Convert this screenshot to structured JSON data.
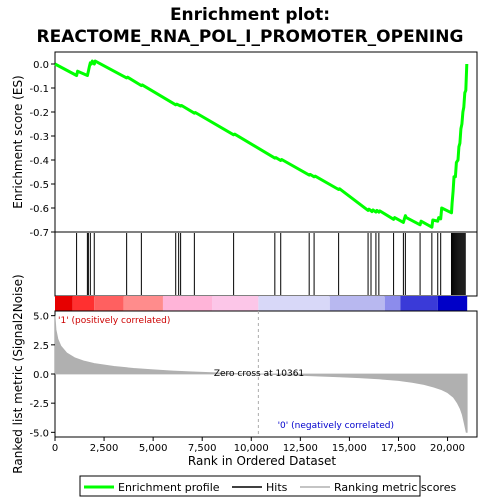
{
  "chart_data": {
    "type": "line",
    "title": "Enrichment plot:",
    "subtitle": "REACTOME_RNA_POL_I_PROMOTER_OPENING",
    "es_panel": {
      "ylabel": "Enrichment score (ES)",
      "ylim": [
        -0.7,
        0.05
      ],
      "yticks": [
        0.0,
        -0.1,
        -0.2,
        -0.3,
        -0.4,
        -0.5,
        -0.6,
        -0.7
      ],
      "ytick_labels": [
        "0.0",
        "-0.1",
        "-0.2",
        "-0.3",
        "-0.4",
        "-0.5",
        "-0.6",
        "-0.7"
      ],
      "line_color": "#00ff00",
      "series": [
        {
          "x": [
            0,
            1100,
            1150,
            1650,
            1700,
            1750,
            1800,
            1850,
            1900,
            2000,
            2050,
            3650,
            3700,
            4400,
            4450,
            6150,
            6200,
            6400,
            6450,
            7100,
            7150,
            9100,
            9150,
            11200,
            11250,
            11500,
            11550,
            12950,
            13000,
            13200,
            13250,
            14450,
            14500,
            15950,
            16000,
            16150,
            16200,
            16350,
            16400,
            16500,
            16550,
            17250,
            17300,
            17750,
            17800,
            17850,
            17900,
            18600,
            18650,
            19200,
            19250,
            19500,
            19550,
            19650,
            19700,
            20200,
            20230,
            20280,
            20330,
            20400,
            20450,
            20530,
            20580,
            20630,
            20680,
            20730,
            20780,
            20830,
            20880,
            20930,
            20980
          ],
          "y": [
            0.0,
            -0.048,
            -0.03,
            -0.048,
            -0.03,
            -0.012,
            0.005,
            0.0,
            0.012,
            0.0,
            0.012,
            -0.058,
            -0.055,
            -0.09,
            -0.087,
            -0.17,
            -0.167,
            -0.175,
            -0.173,
            -0.205,
            -0.202,
            -0.295,
            -0.292,
            -0.392,
            -0.39,
            -0.402,
            -0.398,
            -0.463,
            -0.46,
            -0.47,
            -0.467,
            -0.523,
            -0.52,
            -0.61,
            -0.605,
            -0.615,
            -0.608,
            -0.617,
            -0.61,
            -0.617,
            -0.612,
            -0.647,
            -0.64,
            -0.66,
            -0.645,
            -0.632,
            -0.64,
            -0.67,
            -0.655,
            -0.68,
            -0.65,
            -0.655,
            -0.64,
            -0.645,
            -0.6,
            -0.62,
            -0.58,
            -0.53,
            -0.47,
            -0.47,
            -0.41,
            -0.4,
            -0.345,
            -0.33,
            -0.27,
            -0.25,
            -0.2,
            -0.18,
            -0.12,
            -0.11,
            0.0
          ]
        }
      ]
    },
    "hits": [
      1100,
      1650,
      1700,
      1800,
      2000,
      3650,
      4400,
      6150,
      6300,
      6400,
      7100,
      9100,
      11200,
      11500,
      12950,
      13200,
      14450,
      15950,
      16100,
      16350,
      16500,
      17250,
      17750,
      17850,
      18600,
      19200,
      19500,
      19650,
      20200,
      20250,
      20300,
      20350,
      20400,
      20450,
      20500,
      20550,
      20600,
      20650,
      20700,
      20750,
      20800,
      20850,
      20900
    ],
    "metric_panel": {
      "ylabel": "Ranked list metric (Signal2Noise)",
      "xlabel": "Rank in Ordered Dataset",
      "ylim": [
        -5.4,
        5.4
      ],
      "yticks": [
        5.0,
        2.5,
        0.0,
        -2.5,
        -5.0
      ],
      "ytick_labels": [
        "5.0",
        "2.5",
        "0.0",
        "-2.5",
        "-5.0"
      ],
      "xlim": [
        0,
        21500
      ],
      "xticks": [
        0,
        2500,
        5000,
        7500,
        10000,
        12500,
        15000,
        17500,
        20000
      ],
      "xtick_labels": [
        "0",
        "2,500",
        "5,000",
        "7,500",
        "10,000",
        "12,500",
        "15,000",
        "17,500",
        "20,000"
      ],
      "fill_color": "#b0b0b0",
      "zero_cross": 10361,
      "zero_cross_label": "Zero cross at 10361",
      "pos_label": "'1' (positively correlated)",
      "neg_label": "'0' (negatively correlated)",
      "pos_color": "#cc0000",
      "neg_color": "#0000cc",
      "profile": {
        "x": [
          0,
          50,
          150,
          300,
          600,
          1000,
          1500,
          2000,
          3000,
          4000,
          5000,
          6000,
          7000,
          8000,
          9000,
          10361,
          11500,
          12500,
          13500,
          14500,
          15500,
          16500,
          17500,
          18200,
          18800,
          19300,
          19700,
          20000,
          20300,
          20500,
          20650,
          20750,
          20850,
          20950,
          21000
        ],
        "y": [
          5.0,
          3.8,
          3.0,
          2.4,
          1.8,
          1.4,
          1.1,
          0.9,
          0.65,
          0.48,
          0.36,
          0.26,
          0.18,
          0.11,
          0.05,
          0.0,
          -0.06,
          -0.12,
          -0.18,
          -0.24,
          -0.32,
          -0.42,
          -0.56,
          -0.72,
          -0.9,
          -1.12,
          -1.35,
          -1.6,
          -2.0,
          -2.5,
          -3.0,
          -3.5,
          -4.2,
          -5.0,
          -5.0
        ]
      }
    },
    "colorbar": {
      "stops": [
        "#e60000",
        "#ff3030",
        "#ff6060",
        "#ff8c8c",
        "#ffb4d8",
        "#fcc6e8",
        "#d8d8f8",
        "#b8b8f0",
        "#8c8cec",
        "#3a3ad8",
        "#0000c8"
      ],
      "x_edges": [
        0,
        900,
        2000,
        3500,
        5500,
        8000,
        10361,
        14000,
        16800,
        17600,
        19500,
        21000
      ]
    },
    "legend": {
      "entries": [
        {
          "label": "Enrichment profile",
          "color": "#00ff00",
          "style": "thick"
        },
        {
          "label": "Hits",
          "color": "#000000",
          "style": "thin"
        },
        {
          "label": "Ranking metric scores",
          "color": "#b0b0b0",
          "style": "thin"
        }
      ]
    },
    "grid": false
  }
}
